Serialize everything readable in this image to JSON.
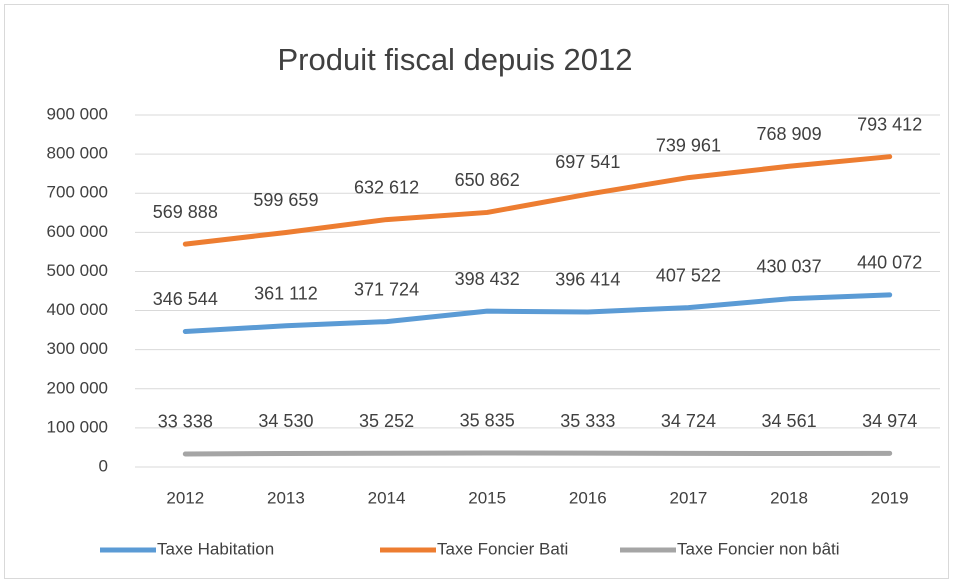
{
  "chart_data": {
    "type": "line",
    "title": "Produit fiscal depuis 2012",
    "categories": [
      "2012",
      "2013",
      "2014",
      "2015",
      "2016",
      "2017",
      "2018",
      "2019"
    ],
    "series": [
      {
        "name": "Taxe Habitation",
        "color": "#5b9bd5",
        "values": [
          346544,
          361112,
          371724,
          398432,
          396414,
          407522,
          430037,
          440072
        ],
        "value_labels": [
          "346 544",
          "361 112",
          "371 724",
          "398 432",
          "396 414",
          "407 522",
          "430 037",
          "440 072"
        ]
      },
      {
        "name": "Taxe Foncier Bati",
        "color": "#ed7d31",
        "values": [
          569888,
          599659,
          632612,
          650862,
          697541,
          739961,
          768909,
          793412
        ],
        "value_labels": [
          "569 888",
          "599 659",
          "632 612",
          "650 862",
          "697 541",
          "739 961",
          "768 909",
          "793 412"
        ]
      },
      {
        "name": "Taxe Foncier non bâti",
        "color": "#a5a5a5",
        "values": [
          33338,
          34530,
          35252,
          35835,
          35333,
          34724,
          34561,
          34974
        ],
        "value_labels": [
          "33 338",
          "34 530",
          "35 252",
          "35 835",
          "35 333",
          "34 724",
          "34 561",
          "34 974"
        ]
      }
    ],
    "ylim": [
      0,
      900000
    ],
    "yticks": [
      0,
      {
        "value": 100000,
        "label": "100 000"
      },
      {
        "value": 200000,
        "label": "200 000"
      },
      {
        "value": 300000,
        "label": "300 000"
      },
      {
        "value": 400000,
        "label": "400 000"
      },
      {
        "value": 500000,
        "label": "500 000"
      },
      {
        "value": 600000,
        "label": "600 000"
      },
      {
        "value": 700000,
        "label": "700 000"
      },
      {
        "value": 800000,
        "label": "800 000"
      },
      {
        "value": 900000,
        "label": "900 000"
      }
    ],
    "grid": true
  }
}
